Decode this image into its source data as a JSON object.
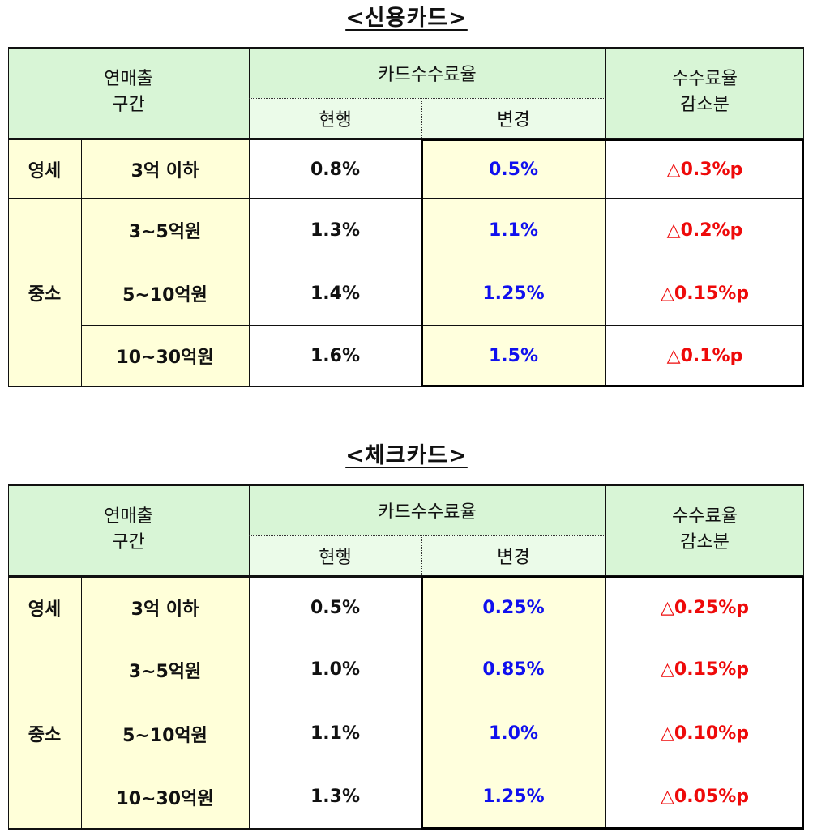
{
  "tables": [
    {
      "title": "<신용카드>",
      "header": {
        "revenue_range_line1": "연매출",
        "revenue_range_line2": "구간",
        "fee_rate": "카드수수료율",
        "current": "현행",
        "changed": "변경",
        "reduction_line1": "수수료율",
        "reduction_line2": "감소분"
      },
      "groups": {
        "small": "영세",
        "mid": "중소"
      },
      "rows": [
        {
          "range": "3억 이하",
          "current": "0.8%",
          "changed": "0.5%",
          "reduction": "△0.3%p"
        },
        {
          "range": "3~5억원",
          "current": "1.3%",
          "changed": "1.1%",
          "reduction": "△0.2%p"
        },
        {
          "range": "5~10억원",
          "current": "1.4%",
          "changed": "1.25%",
          "reduction": "△0.15%p"
        },
        {
          "range": "10~30억원",
          "current": "1.6%",
          "changed": "1.5%",
          "reduction": "△0.1%p"
        }
      ]
    },
    {
      "title": "<체크카드>",
      "header": {
        "revenue_range_line1": "연매출",
        "revenue_range_line2": "구간",
        "fee_rate": "카드수수료율",
        "current": "현행",
        "changed": "변경",
        "reduction_line1": "수수료율",
        "reduction_line2": "감소분"
      },
      "groups": {
        "small": "영세",
        "mid": "중소"
      },
      "rows": [
        {
          "range": "3억 이하",
          "current": "0.5%",
          "changed": "0.25%",
          "reduction": "△0.25%p"
        },
        {
          "range": "3~5억원",
          "current": "1.0%",
          "changed": "0.85%",
          "reduction": "△0.15%p"
        },
        {
          "range": "5~10억원",
          "current": "1.1%",
          "changed": "1.0%",
          "reduction": "△0.10%p"
        },
        {
          "range": "10~30억원",
          "current": "1.3%",
          "changed": "1.25%",
          "reduction": "△0.05%p"
        }
      ]
    }
  ],
  "colors": {
    "header_green": "#d8f5d6",
    "category_yellow": "#ffffd9",
    "changed_blue": "#1010ee",
    "reduction_red": "#ee0a0a"
  }
}
